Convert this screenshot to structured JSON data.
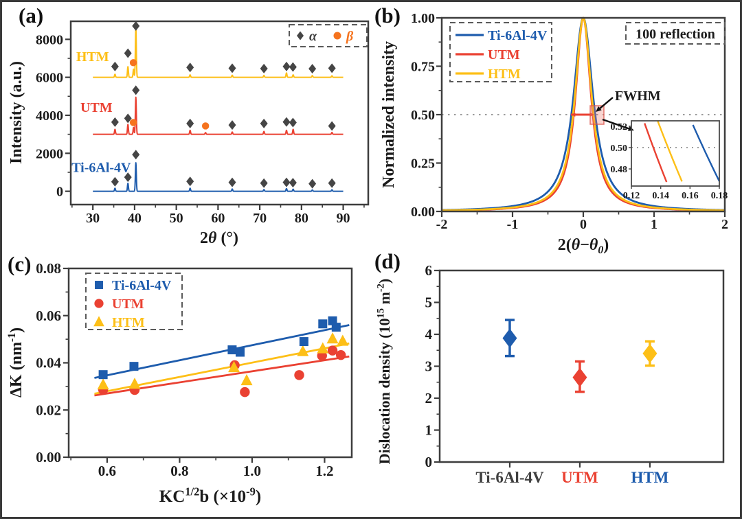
{
  "colors": {
    "blue": "#1e5cad",
    "red": "#ea4132",
    "yellow": "#fdbf17",
    "orange": "#f5731e",
    "dark": "#454545",
    "gray_label": "#3f3f3f",
    "frame": "#3d3d3d",
    "text": "#1b1b1b",
    "dotted": "#9a9a9a",
    "legend_border": "#5a5a5a",
    "fwhm_box_fill": "rgba(235,120,110,0.32)",
    "fwhm_box_stroke": "rgba(220,85,75,0.8)"
  },
  "panels": [
    {
      "label": "(a)"
    },
    {
      "label": "(b)"
    },
    {
      "label": "(c)"
    },
    {
      "label": "(d)"
    }
  ],
  "chart_data": [
    {
      "type": "line",
      "kind": "xrd",
      "xlabel": [
        {
          "t": "2"
        },
        {
          "t": "θ",
          "i": true
        },
        {
          "t": " (°)"
        }
      ],
      "ylabel": [
        {
          "t": "Intensity (a.u.)"
        }
      ],
      "xlim": [
        24.7,
        96
      ],
      "ylim": [
        -700,
        8950
      ],
      "xticks": [
        {
          "v": 30,
          "l": "30"
        },
        {
          "v": 40,
          "l": "40"
        },
        {
          "v": 50,
          "l": "50"
        },
        {
          "v": 60,
          "l": "60"
        },
        {
          "v": 70,
          "l": "70"
        },
        {
          "v": 80,
          "l": "80"
        },
        {
          "v": 90,
          "l": "90"
        }
      ],
      "xminor": [
        25,
        35,
        45,
        55,
        65,
        75,
        85,
        95
      ],
      "yticks": [
        {
          "v": 0,
          "l": "0"
        },
        {
          "v": 2000,
          "l": "2000"
        },
        {
          "v": 4000,
          "l": "4000"
        },
        {
          "v": 6000,
          "l": "6000"
        },
        {
          "v": 8000,
          "l": "8000"
        }
      ],
      "yminor": [
        1000,
        3000,
        5000,
        7000
      ],
      "trace_range": [
        30,
        90
      ],
      "series": [
        {
          "name": "Ti-6Al-4V",
          "color_key": "blue",
          "baseline": 0,
          "label_pos": [
            24.9,
            1020
          ],
          "peaks": [
            [
              35.3,
              160
            ],
            [
              38.4,
              420
            ],
            [
              40.3,
              1500
            ],
            [
              53.3,
              160
            ],
            [
              63.4,
              120
            ],
            [
              71.0,
              90
            ],
            [
              76.4,
              140
            ],
            [
              78.0,
              110
            ],
            [
              82.6,
              70
            ],
            [
              87.3,
              80
            ]
          ],
          "alpha_markers": [
            [
              35.3,
              500
            ],
            [
              38.4,
              740
            ],
            [
              40.3,
              1930
            ],
            [
              53.3,
              520
            ],
            [
              63.4,
              470
            ],
            [
              71.0,
              430
            ],
            [
              76.4,
              470
            ],
            [
              77.95,
              450
            ],
            [
              82.6,
              400
            ],
            [
              87.3,
              430
            ]
          ],
          "beta_markers": []
        },
        {
          "name": "UTM",
          "color_key": "red",
          "baseline": 3000,
          "label_pos": [
            27.0,
            4180
          ],
          "peaks": [
            [
              35.3,
              260
            ],
            [
              38.4,
              520
            ],
            [
              39.75,
              360
            ],
            [
              40.3,
              1950
            ],
            [
              53.3,
              210
            ],
            [
              57.0,
              90
            ],
            [
              63.4,
              120
            ],
            [
              71.0,
              150
            ],
            [
              76.4,
              210
            ],
            [
              78.0,
              260
            ],
            [
              87.3,
              100
            ]
          ],
          "alpha_markers": [
            [
              35.3,
              3640
            ],
            [
              38.4,
              3840
            ],
            [
              40.3,
              5320
            ],
            [
              53.3,
              3570
            ],
            [
              63.4,
              3490
            ],
            [
              71.0,
              3570
            ],
            [
              76.4,
              3650
            ],
            [
              77.95,
              3620
            ],
            [
              87.3,
              3440
            ]
          ],
          "beta_markers": [
            [
              39.7,
              3620
            ],
            [
              57.0,
              3440
            ]
          ]
        },
        {
          "name": "HTM",
          "color_key": "yellow",
          "baseline": 6000,
          "label_pos": [
            26.0,
            6850
          ],
          "peaks": [
            [
              35.3,
              160
            ],
            [
              38.4,
              560
            ],
            [
              39.75,
              430
            ],
            [
              40.3,
              2650
            ],
            [
              53.3,
              130
            ],
            [
              63.4,
              110
            ],
            [
              71.0,
              100
            ],
            [
              76.4,
              230
            ],
            [
              78.0,
              130
            ],
            [
              82.6,
              90
            ],
            [
              87.3,
              80
            ]
          ],
          "alpha_markers": [
            [
              35.3,
              6570
            ],
            [
              38.4,
              7270
            ],
            [
              40.3,
              8700
            ],
            [
              53.3,
              6520
            ],
            [
              63.4,
              6480
            ],
            [
              71.0,
              6460
            ],
            [
              76.4,
              6570
            ],
            [
              77.95,
              6540
            ],
            [
              82.6,
              6450
            ],
            [
              87.3,
              6480
            ]
          ],
          "beta_markers": [
            [
              39.7,
              6770
            ]
          ]
        }
      ],
      "legend": {
        "alpha_label": "α",
        "beta_label": "β"
      }
    },
    {
      "type": "line",
      "kind": "profile",
      "xlabel": [
        {
          "t": "2("
        },
        {
          "t": "θ",
          "i": true
        },
        {
          "t": "−"
        },
        {
          "t": "θ",
          "i": true
        },
        {
          "t": "0",
          "sub": true,
          "i": true
        },
        {
          "t": ")"
        }
      ],
      "ylabel": [
        {
          "t": "Normalized intensity"
        }
      ],
      "xlim": [
        -2,
        2
      ],
      "ylim": [
        0,
        1
      ],
      "xticks": [
        {
          "v": -2,
          "l": "-2"
        },
        {
          "v": -1,
          "l": "-1"
        },
        {
          "v": 0,
          "l": "0"
        },
        {
          "v": 1,
          "l": "1"
        },
        {
          "v": 2,
          "l": "2"
        }
      ],
      "xminor": [
        -1.5,
        -0.5,
        0.5,
        1.5
      ],
      "yticks": [
        {
          "v": 0,
          "l": "0.00"
        },
        {
          "v": 0.25,
          "l": "0.25"
        },
        {
          "v": 0.5,
          "l": "0.50"
        },
        {
          "v": 0.75,
          "l": "0.75"
        },
        {
          "v": 1,
          "l": "1.00"
        }
      ],
      "yminor": [
        0.125,
        0.375,
        0.625,
        0.875
      ],
      "curves": [
        {
          "name": "Ti-6Al-4V",
          "color_key": "blue",
          "half_width": 0.169
        },
        {
          "name": "UTM",
          "color_key": "red",
          "half_width": 0.135
        },
        {
          "name": "HTM",
          "color_key": "yellow",
          "half_width": 0.145
        }
      ],
      "legend_entries": [
        {
          "label": "Ti-6Al-4V",
          "color_key": "blue"
        },
        {
          "label": "UTM",
          "color_key": "red"
        },
        {
          "label": "HTM",
          "color_key": "yellow"
        }
      ],
      "annotation_box_label": "100 reflection",
      "fwhm_label": "FWHM",
      "half_intensity": 0.5,
      "fwhm_arrow_x": [
        -0.175,
        0.155
      ],
      "inset": {
        "xlim": [
          0.12,
          0.18
        ],
        "ylim": [
          0.464,
          0.525
        ],
        "xticks": [
          {
            "v": 0.12,
            "l": "0.12"
          },
          {
            "v": 0.14,
            "l": "0.14"
          },
          {
            "v": 0.16,
            "l": "0.16"
          },
          {
            "v": 0.18,
            "l": "0.18"
          }
        ],
        "yticks": [
          {
            "v": 0.48,
            "l": "0.48"
          },
          {
            "v": 0.5,
            "l": "0.50"
          },
          {
            "v": 0.52,
            "l": "0.52"
          }
        ],
        "dotted_y": 0.5,
        "half_width_crossings": {
          "UTM": 0.135,
          "HTM": 0.145,
          "Ti-6Al-4V": 0.169
        }
      }
    },
    {
      "type": "scatter",
      "kind": "mwh",
      "xlabel": [
        {
          "t": "KC"
        },
        {
          "t": "1/2",
          "sup": true
        },
        {
          "t": "b (×10"
        },
        {
          "t": "-9",
          "sup": true
        },
        {
          "t": ")"
        }
      ],
      "ylabel": [
        {
          "t": "ΔK (nm"
        },
        {
          "t": "-1",
          "sup": true
        },
        {
          "t": ")"
        }
      ],
      "xlim": [
        0.494,
        1.275
      ],
      "ylim": [
        0,
        0.08
      ],
      "xticks": [
        {
          "v": 0.6,
          "l": "0.6"
        },
        {
          "v": 0.8,
          "l": "0.8"
        },
        {
          "v": 1.0,
          "l": "1.0"
        },
        {
          "v": 1.2,
          "l": "1.2"
        }
      ],
      "xminor": [
        0.5,
        0.7,
        0.9,
        1.1
      ],
      "yticks": [
        {
          "v": 0,
          "l": "0.00"
        },
        {
          "v": 0.02,
          "l": "0.02"
        },
        {
          "v": 0.04,
          "l": "0.04"
        },
        {
          "v": 0.06,
          "l": "0.06"
        },
        {
          "v": 0.08,
          "l": "0.08"
        }
      ],
      "yminor": [
        0.01,
        0.03,
        0.05,
        0.07
      ],
      "series": [
        {
          "name": "UTM",
          "marker": "circle",
          "color_key": "red",
          "points": [
            [
              0.589,
              0.0286
            ],
            [
              0.676,
              0.0285
            ],
            [
              0.952,
              0.039
            ],
            [
              0.98,
              0.0276
            ],
            [
              1.13,
              0.0348
            ],
            [
              1.193,
              0.043
            ],
            [
              1.222,
              0.0452
            ],
            [
              1.245,
              0.0433
            ]
          ],
          "fit": [
            [
              0.565,
              0.0262
            ],
            [
              1.268,
              0.0427
            ]
          ]
        },
        {
          "name": "HTM",
          "marker": "triangle",
          "color_key": "yellow",
          "points": [
            [
              0.589,
              0.0307
            ],
            [
              0.676,
              0.031
            ],
            [
              0.95,
              0.038
            ],
            [
              0.985,
              0.0325
            ],
            [
              1.14,
              0.0448
            ],
            [
              1.195,
              0.046
            ],
            [
              1.222,
              0.0502
            ],
            [
              1.25,
              0.0492
            ]
          ],
          "fit": [
            [
              0.565,
              0.0269
            ],
            [
              1.268,
              0.0482
            ]
          ]
        },
        {
          "name": "Ti-6Al-4V",
          "marker": "square",
          "color_key": "blue",
          "points": [
            [
              0.589,
              0.035
            ],
            [
              0.674,
              0.0385
            ],
            [
              0.945,
              0.0455
            ],
            [
              0.967,
              0.0445
            ],
            [
              1.143,
              0.049
            ],
            [
              1.195,
              0.0565
            ],
            [
              1.222,
              0.0578
            ],
            [
              1.232,
              0.0551
            ]
          ],
          "fit": [
            [
              0.565,
              0.0336
            ],
            [
              1.268,
              0.056
            ]
          ]
        }
      ],
      "legend_entries": [
        {
          "label": "Ti-6Al-4V",
          "marker": "square",
          "color_key": "blue"
        },
        {
          "label": "UTM",
          "marker": "circle",
          "color_key": "red"
        },
        {
          "label": "HTM",
          "marker": "triangle",
          "color_key": "yellow"
        }
      ]
    },
    {
      "type": "scatter",
      "kind": "dislocation",
      "ylabel": [
        {
          "t": "Dislocation density (10"
        },
        {
          "t": "15",
          "sup": true
        },
        {
          "t": " m"
        },
        {
          "t": "-2",
          "sup": true
        },
        {
          "t": ")"
        }
      ],
      "xlim": [
        0,
        4.05
      ],
      "ylim": [
        0,
        6
      ],
      "yticks": [
        {
          "v": 0,
          "l": "0"
        },
        {
          "v": 1,
          "l": "1"
        },
        {
          "v": 2,
          "l": "2"
        },
        {
          "v": 3,
          "l": "3"
        },
        {
          "v": 4,
          "l": "4"
        },
        {
          "v": 5,
          "l": "5"
        },
        {
          "v": 6,
          "l": "6"
        }
      ],
      "yminor": [
        0.5,
        1.5,
        2.5,
        3.5,
        4.5,
        5.5
      ],
      "categories": [
        {
          "label": "Ti-6Al-4V",
          "x": 1,
          "color_key": "gray_label"
        },
        {
          "label": "UTM",
          "x": 2,
          "color_key": "red"
        },
        {
          "label": "HTM",
          "x": 3,
          "color_key": "blue"
        }
      ],
      "points": [
        {
          "category": "Ti-6Al-4V",
          "x": 1,
          "y": 3.88,
          "err_lo": 3.32,
          "err_hi": 4.45,
          "color_key": "blue"
        },
        {
          "category": "UTM",
          "x": 2,
          "y": 2.65,
          "err_lo": 2.2,
          "err_hi": 3.15,
          "color_key": "red"
        },
        {
          "category": "HTM",
          "x": 3,
          "y": 3.4,
          "err_lo": 3.02,
          "err_hi": 3.78,
          "color_key": "yellow"
        }
      ]
    }
  ]
}
